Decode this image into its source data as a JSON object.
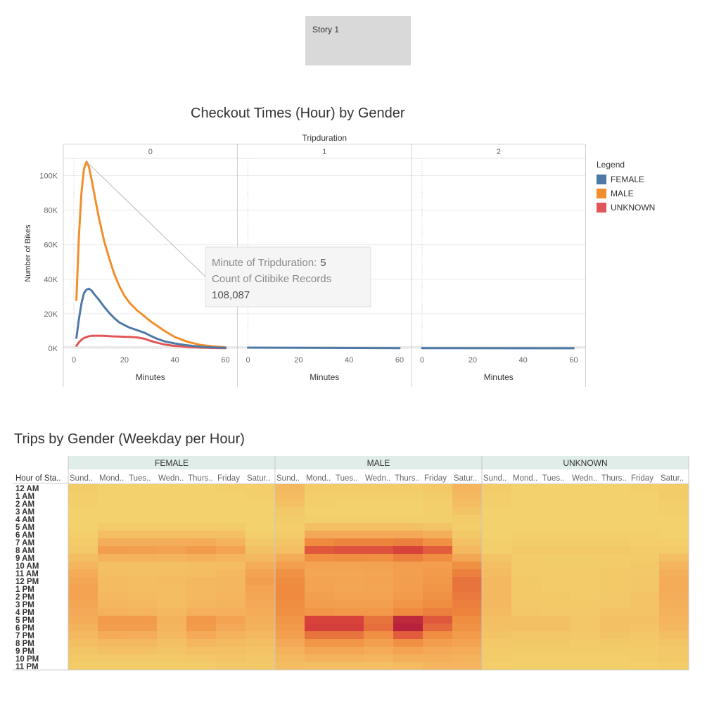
{
  "story": {
    "tab_label": "Story 1"
  },
  "line_chart_title": "Checkout Times (Hour) by Gender",
  "heatmap_title": "Trips by Gender (Weekday per Hour)",
  "legend": {
    "title": "Legend",
    "items": [
      {
        "label": "FEMALE",
        "color": "#4e79a7"
      },
      {
        "label": "MALE",
        "color": "#f28e2b"
      },
      {
        "label": "UNKNOWN",
        "color": "#e15759"
      }
    ]
  },
  "tooltip": {
    "line1_label": "Minute of Tripduration:",
    "line1_value": "5",
    "line2_label": "Count of Citibike Records",
    "line3_value": "108,087"
  },
  "chart_data": [
    {
      "type": "line",
      "title": "Checkout Times (Hour) by Gender",
      "column_header": "Tripduration",
      "panels": [
        "0",
        "1",
        "2"
      ],
      "xlabel": "Minutes",
      "ylabel": "Number of Bikes",
      "xlim": [
        0,
        60
      ],
      "ylim": [
        0,
        110000
      ],
      "xticks": [
        0,
        20,
        40,
        60
      ],
      "yticks": [
        0,
        20000,
        40000,
        60000,
        80000,
        100000
      ],
      "ytick_labels": [
        "0K",
        "20K",
        "40K",
        "60K",
        "80K",
        "100K"
      ],
      "grid": true,
      "legend_position": "right",
      "x": [
        1,
        2,
        3,
        4,
        5,
        6,
        7,
        8,
        10,
        12,
        14,
        16,
        18,
        20,
        22,
        25,
        28,
        30,
        33,
        36,
        40,
        45,
        50,
        55,
        60
      ],
      "series": [
        {
          "name": "MALE",
          "panel": "0",
          "color": "#f28e2b",
          "values": [
            28000,
            65000,
            90000,
            104000,
            108087,
            105000,
            98000,
            90000,
            75000,
            62000,
            52000,
            43000,
            36000,
            30500,
            26500,
            22000,
            18500,
            16000,
            13000,
            10000,
            6500,
            3800,
            2000,
            1100,
            600
          ]
        },
        {
          "name": "FEMALE",
          "panel": "0",
          "color": "#4e79a7",
          "values": [
            6000,
            17000,
            26000,
            32000,
            34000,
            34500,
            33500,
            31500,
            28000,
            24000,
            20500,
            17500,
            15000,
            13500,
            12000,
            10500,
            9000,
            7500,
            5500,
            4000,
            2800,
            1700,
            900,
            500,
            300
          ]
        },
        {
          "name": "UNKNOWN",
          "panel": "0",
          "color": "#e15759",
          "values": [
            1500,
            3500,
            5000,
            6000,
            6500,
            7000,
            7200,
            7300,
            7300,
            7200,
            7000,
            6900,
            6800,
            6700,
            6600,
            6300,
            5500,
            4500,
            3200,
            2200,
            1400,
            800,
            400,
            200,
            100
          ]
        }
      ],
      "panel_series": [
        {
          "panel": "1",
          "x": [
            0,
            60
          ],
          "values": [
            400,
            100
          ]
        },
        {
          "panel": "2",
          "x": [
            0,
            60
          ],
          "values": [
            100,
            50
          ]
        }
      ]
    },
    {
      "type": "heatmap",
      "title": "Trips by Gender (Weekday per Hour)",
      "row_header": "Hour of Sta..",
      "genders": [
        "FEMALE",
        "MALE",
        "UNKNOWN"
      ],
      "days": [
        "Sund..",
        "Mond..",
        "Tues..",
        "Wedn..",
        "Thurs..",
        "Friday",
        "Satur.."
      ],
      "hours": [
        "12 AM",
        "1 AM",
        "2 AM",
        "3 AM",
        "4 AM",
        "5 AM",
        "6 AM",
        "7 AM",
        "8 AM",
        "9 AM",
        "10 AM",
        "11 AM",
        "12 PM",
        "1 PM",
        "2 PM",
        "3 PM",
        "4 PM",
        "5 PM",
        "6 PM",
        "7 PM",
        "8 PM",
        "9 PM",
        "10 PM",
        "11 PM"
      ],
      "color_scale": [
        "#f3d46e",
        "#f4ad5a",
        "#ef8a3e",
        "#d9443b",
        "#b31c3c"
      ],
      "intensity": {
        "FEMALE": [
          [
            0.05,
            0.02,
            0.02,
            0.02,
            0.02,
            0.03,
            0.04
          ],
          [
            0.04,
            0.01,
            0.01,
            0.01,
            0.01,
            0.02,
            0.03
          ],
          [
            0.03,
            0.01,
            0.01,
            0.01,
            0.01,
            0.01,
            0.02
          ],
          [
            0.02,
            0.01,
            0.01,
            0.01,
            0.01,
            0.01,
            0.02
          ],
          [
            0.02,
            0.02,
            0.02,
            0.02,
            0.02,
            0.02,
            0.02
          ],
          [
            0.02,
            0.06,
            0.06,
            0.06,
            0.06,
            0.05,
            0.02
          ],
          [
            0.04,
            0.14,
            0.14,
            0.14,
            0.14,
            0.12,
            0.04
          ],
          [
            0.06,
            0.25,
            0.25,
            0.25,
            0.26,
            0.22,
            0.08
          ],
          [
            0.08,
            0.36,
            0.35,
            0.33,
            0.38,
            0.32,
            0.12
          ],
          [
            0.14,
            0.22,
            0.22,
            0.21,
            0.24,
            0.2,
            0.18
          ],
          [
            0.2,
            0.13,
            0.13,
            0.13,
            0.14,
            0.15,
            0.26
          ],
          [
            0.26,
            0.14,
            0.13,
            0.14,
            0.15,
            0.17,
            0.32
          ],
          [
            0.3,
            0.16,
            0.15,
            0.16,
            0.17,
            0.19,
            0.34
          ],
          [
            0.32,
            0.16,
            0.15,
            0.15,
            0.17,
            0.19,
            0.32
          ],
          [
            0.32,
            0.17,
            0.16,
            0.15,
            0.18,
            0.2,
            0.3
          ],
          [
            0.3,
            0.19,
            0.18,
            0.15,
            0.19,
            0.21,
            0.28
          ],
          [
            0.28,
            0.22,
            0.21,
            0.17,
            0.23,
            0.23,
            0.26
          ],
          [
            0.26,
            0.38,
            0.38,
            0.22,
            0.4,
            0.32,
            0.24
          ],
          [
            0.22,
            0.36,
            0.36,
            0.2,
            0.38,
            0.28,
            0.22
          ],
          [
            0.18,
            0.26,
            0.25,
            0.17,
            0.27,
            0.22,
            0.18
          ],
          [
            0.14,
            0.18,
            0.18,
            0.13,
            0.19,
            0.16,
            0.14
          ],
          [
            0.1,
            0.12,
            0.12,
            0.1,
            0.13,
            0.12,
            0.11
          ],
          [
            0.07,
            0.08,
            0.08,
            0.07,
            0.09,
            0.1,
            0.09
          ],
          [
            0.05,
            0.05,
            0.05,
            0.05,
            0.06,
            0.08,
            0.07
          ]
        ],
        "MALE": [
          [
            0.18,
            0.06,
            0.05,
            0.05,
            0.05,
            0.07,
            0.2
          ],
          [
            0.16,
            0.04,
            0.03,
            0.03,
            0.03,
            0.05,
            0.18
          ],
          [
            0.12,
            0.03,
            0.02,
            0.02,
            0.02,
            0.04,
            0.15
          ],
          [
            0.08,
            0.02,
            0.02,
            0.02,
            0.02,
            0.03,
            0.1
          ],
          [
            0.05,
            0.03,
            0.03,
            0.03,
            0.03,
            0.03,
            0.06
          ],
          [
            0.04,
            0.12,
            0.12,
            0.12,
            0.12,
            0.1,
            0.04
          ],
          [
            0.06,
            0.28,
            0.28,
            0.28,
            0.28,
            0.24,
            0.07
          ],
          [
            0.1,
            0.5,
            0.52,
            0.52,
            0.54,
            0.46,
            0.12
          ],
          [
            0.14,
            0.68,
            0.7,
            0.7,
            0.76,
            0.66,
            0.18
          ],
          [
            0.26,
            0.46,
            0.48,
            0.47,
            0.54,
            0.48,
            0.3
          ],
          [
            0.36,
            0.32,
            0.32,
            0.33,
            0.36,
            0.36,
            0.46
          ],
          [
            0.44,
            0.3,
            0.3,
            0.31,
            0.34,
            0.38,
            0.54
          ],
          [
            0.48,
            0.32,
            0.31,
            0.32,
            0.36,
            0.4,
            0.58
          ],
          [
            0.5,
            0.32,
            0.3,
            0.31,
            0.36,
            0.42,
            0.58
          ],
          [
            0.5,
            0.34,
            0.32,
            0.32,
            0.38,
            0.44,
            0.56
          ],
          [
            0.48,
            0.36,
            0.34,
            0.34,
            0.42,
            0.48,
            0.54
          ],
          [
            0.46,
            0.42,
            0.4,
            0.4,
            0.5,
            0.54,
            0.52
          ],
          [
            0.42,
            0.76,
            0.76,
            0.58,
            0.92,
            0.68,
            0.48
          ],
          [
            0.38,
            0.78,
            0.78,
            0.6,
            0.96,
            0.62,
            0.44
          ],
          [
            0.34,
            0.58,
            0.58,
            0.46,
            0.66,
            0.48,
            0.38
          ],
          [
            0.28,
            0.42,
            0.42,
            0.34,
            0.46,
            0.36,
            0.32
          ],
          [
            0.22,
            0.3,
            0.3,
            0.26,
            0.32,
            0.28,
            0.26
          ],
          [
            0.18,
            0.22,
            0.22,
            0.2,
            0.24,
            0.24,
            0.22
          ],
          [
            0.15,
            0.14,
            0.14,
            0.14,
            0.16,
            0.2,
            0.2
          ]
        ],
        "UNKNOWN": [
          [
            0.05,
            0.02,
            0.02,
            0.02,
            0.02,
            0.03,
            0.06
          ],
          [
            0.04,
            0.01,
            0.01,
            0.01,
            0.01,
            0.02,
            0.05
          ],
          [
            0.03,
            0.01,
            0.01,
            0.01,
            0.01,
            0.01,
            0.04
          ],
          [
            0.02,
            0.01,
            0.01,
            0.01,
            0.01,
            0.01,
            0.03
          ],
          [
            0.02,
            0.01,
            0.01,
            0.01,
            0.01,
            0.01,
            0.02
          ],
          [
            0.02,
            0.02,
            0.02,
            0.02,
            0.02,
            0.02,
            0.02
          ],
          [
            0.02,
            0.03,
            0.03,
            0.03,
            0.03,
            0.03,
            0.02
          ],
          [
            0.03,
            0.05,
            0.05,
            0.05,
            0.05,
            0.04,
            0.04
          ],
          [
            0.04,
            0.07,
            0.07,
            0.07,
            0.07,
            0.06,
            0.06
          ],
          [
            0.1,
            0.06,
            0.05,
            0.05,
            0.06,
            0.06,
            0.14
          ],
          [
            0.14,
            0.06,
            0.05,
            0.05,
            0.06,
            0.07,
            0.2
          ],
          [
            0.16,
            0.06,
            0.06,
            0.06,
            0.07,
            0.08,
            0.24
          ],
          [
            0.18,
            0.07,
            0.06,
            0.06,
            0.07,
            0.09,
            0.26
          ],
          [
            0.18,
            0.07,
            0.06,
            0.06,
            0.07,
            0.09,
            0.26
          ],
          [
            0.18,
            0.07,
            0.07,
            0.06,
            0.08,
            0.1,
            0.25
          ],
          [
            0.17,
            0.08,
            0.07,
            0.07,
            0.08,
            0.1,
            0.24
          ],
          [
            0.16,
            0.09,
            0.08,
            0.08,
            0.1,
            0.11,
            0.22
          ],
          [
            0.14,
            0.12,
            0.12,
            0.09,
            0.13,
            0.12,
            0.2
          ],
          [
            0.12,
            0.12,
            0.12,
            0.09,
            0.13,
            0.11,
            0.18
          ],
          [
            0.1,
            0.09,
            0.09,
            0.08,
            0.1,
            0.09,
            0.14
          ],
          [
            0.08,
            0.07,
            0.07,
            0.06,
            0.07,
            0.07,
            0.1
          ],
          [
            0.06,
            0.05,
            0.05,
            0.05,
            0.05,
            0.06,
            0.08
          ],
          [
            0.05,
            0.04,
            0.04,
            0.04,
            0.04,
            0.05,
            0.07
          ],
          [
            0.04,
            0.03,
            0.03,
            0.03,
            0.03,
            0.04,
            0.06
          ]
        ]
      }
    }
  ]
}
